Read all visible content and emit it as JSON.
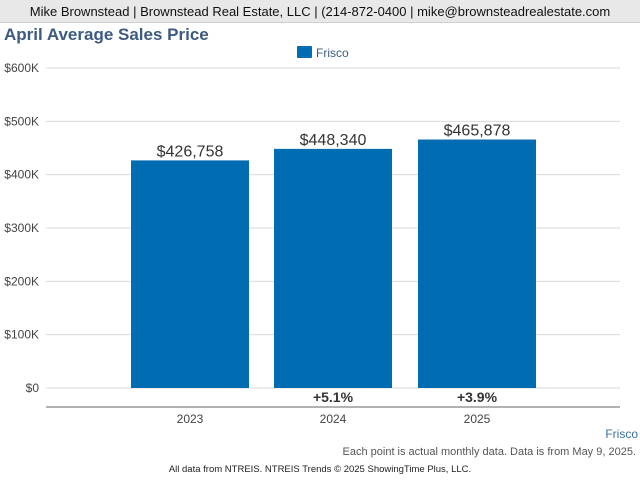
{
  "header": {
    "contact_line": "Mike Brownstead | Brownstead Real Estate, LLC | (214-872-0400 | mike@brownsteadrealestate.com"
  },
  "chart_data": {
    "type": "bar",
    "title": "April Average Sales Price",
    "categories": [
      "2023",
      "2024",
      "2025"
    ],
    "series": [
      {
        "name": "Frisco",
        "values": [
          426758,
          448340,
          465878
        ],
        "color": "#006db3"
      }
    ],
    "data_labels": [
      "$426,758",
      "$448,340",
      "$465,878"
    ],
    "change_labels": [
      "",
      "+5.1%",
      "+3.9%"
    ],
    "y_ticks": [
      "$0",
      "$100K",
      "$200K",
      "$300K",
      "$400K",
      "$500K",
      "$600K"
    ],
    "ylim": [
      0,
      600000
    ],
    "grid": true,
    "legend": "top-center"
  },
  "footer": {
    "series_tag": "Frisco",
    "note": "Each point is actual monthly data. Data is from May 9, 2025.",
    "credit": "All data from NTREIS. NTREIS Trends © 2025 ShowingTime Plus, LLC."
  }
}
